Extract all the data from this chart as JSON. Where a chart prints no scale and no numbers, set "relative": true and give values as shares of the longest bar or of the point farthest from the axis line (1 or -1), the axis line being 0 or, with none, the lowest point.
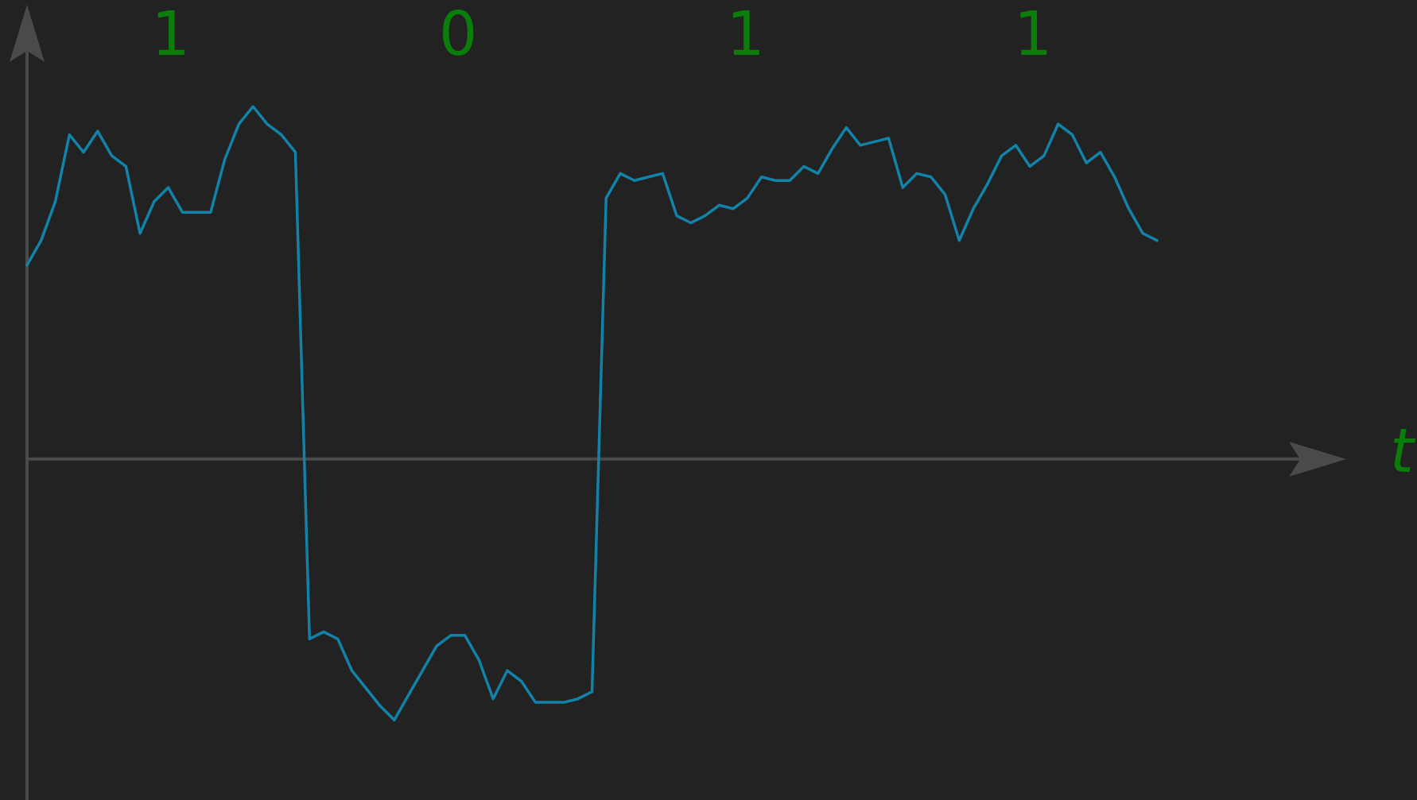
{
  "chart_data": {
    "type": "line",
    "relative": true,
    "xlabel": "t",
    "annotations": [
      "1",
      "0",
      "1",
      "1"
    ],
    "marker": "none",
    "line_style": "solid",
    "categories": [
      null,
      null,
      null,
      null,
      null,
      null,
      null,
      null,
      null,
      null,
      null,
      null,
      null,
      null,
      null,
      null,
      null,
      null,
      null,
      null,
      null,
      null,
      null,
      null,
      null,
      null,
      null,
      null,
      null,
      null,
      null,
      null,
      null,
      null,
      null,
      null,
      null,
      null,
      null,
      null,
      null,
      null,
      null,
      null,
      null,
      null,
      null,
      null,
      null,
      null,
      null,
      null,
      null,
      null,
      null,
      null,
      null,
      null,
      null,
      null,
      null,
      null,
      null,
      null,
      null,
      null,
      null,
      null,
      null,
      null,
      null,
      null,
      null,
      null,
      null,
      null,
      null,
      null,
      null,
      null,
      null
    ],
    "series": [
      {
        "color": "#1382a8",
        "values": [
          0.55,
          0.62,
          0.73,
          0.92,
          0.87,
          0.93,
          0.86,
          0.83,
          0.64,
          0.73,
          0.77,
          0.7,
          0.7,
          0.7,
          0.85,
          0.95,
          1,
          0.95,
          0.92,
          0.87,
          -0.51,
          -0.49,
          -0.51,
          -0.6,
          -0.65,
          -0.7,
          -0.74,
          -0.67,
          -0.6,
          -0.53,
          -0.5,
          -0.5,
          -0.57,
          -0.68,
          -0.6,
          -0.63,
          -0.69,
          -0.69,
          -0.69,
          -0.68,
          -0.66,
          0.74,
          0.81,
          0.79,
          0.8,
          0.81,
          0.69,
          0.67,
          0.69,
          0.72,
          0.71,
          0.74,
          0.8,
          0.79,
          0.79,
          0.83,
          0.81,
          0.88,
          0.94,
          0.89,
          0.9,
          0.91,
          0.77,
          0.81,
          0.8,
          0.75,
          0.62,
          0.71,
          0.78,
          0.86,
          0.89,
          0.83,
          0.86,
          0.95,
          0.92,
          0.84,
          0.87,
          0.8,
          0.71,
          0.64,
          0.62
        ]
      }
    ]
  }
}
